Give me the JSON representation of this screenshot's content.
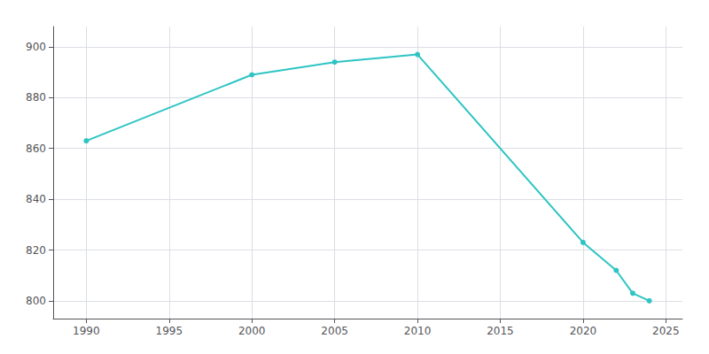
{
  "chart_data": {
    "type": "line",
    "x": [
      1990,
      2000,
      2005,
      2010,
      2020,
      2022,
      2023,
      2024
    ],
    "values": [
      863,
      889,
      894,
      897,
      823,
      812,
      803,
      800
    ],
    "color": "#2ec4c4",
    "marker": "circle",
    "xlim": [
      1988,
      2026
    ],
    "ylim": [
      793,
      908
    ],
    "xticks": [
      1990,
      1995,
      2000,
      2005,
      2010,
      2015,
      2020,
      2025
    ],
    "yticks": [
      800,
      820,
      840,
      860,
      880,
      900
    ],
    "grid": true
  }
}
